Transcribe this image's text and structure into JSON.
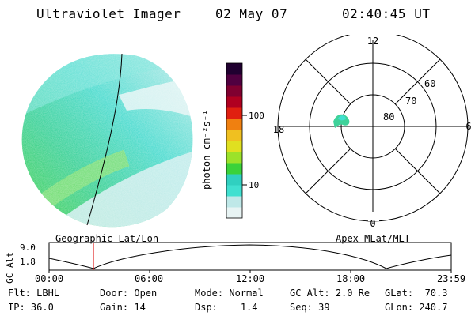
{
  "header": {
    "instrument": "Ultraviolet Imager",
    "date": "02 May 07",
    "time": "02:40:45 UT"
  },
  "colorbar": {
    "unit_label": "photon cm⁻²s⁻¹",
    "ticks": [
      "100",
      "10"
    ],
    "colors": [
      "#e8f4f4",
      "#bfe8e8",
      "#40e0d0",
      "#30d0c0",
      "#3ad23a",
      "#9be22a",
      "#e0e020",
      "#f0c020",
      "#f08010",
      "#e02010",
      "#b00020",
      "#800030",
      "#500040",
      "#200030"
    ]
  },
  "polar": {
    "mlt_labels": {
      "top": "12",
      "right": "6",
      "bottom": "0",
      "left": "18"
    },
    "lat_labels": [
      "60",
      "70",
      "80"
    ]
  },
  "timeline": {
    "left_label": "Geographic Lat/Lon",
    "right_label": "Apex MLat/MLT",
    "axis_label": "GC Alt",
    "y_ticks": [
      "9.0",
      "1.8"
    ],
    "x_ticks": [
      "00:00",
      "06:00",
      "12:00",
      "18:00",
      "23:59"
    ],
    "marker_time": "02:40"
  },
  "info": {
    "row1": [
      {
        "key": "Flt:",
        "value": "LBHL"
      },
      {
        "key": "Door:",
        "value": "Open"
      },
      {
        "key": "Mode:",
        "value": "Normal"
      },
      {
        "key": "GC Alt:",
        "value": "2.0 Re"
      },
      {
        "key": "GLat:",
        "value": "70.3"
      }
    ],
    "row2": [
      {
        "key": "IP:",
        "value": "36.0"
      },
      {
        "key": "Gain:",
        "value": "14"
      },
      {
        "key": "Dsp:",
        "value": "1.4"
      },
      {
        "key": "Seq:",
        "value": "39"
      },
      {
        "key": "GLon:",
        "value": "240.7"
      }
    ]
  }
}
